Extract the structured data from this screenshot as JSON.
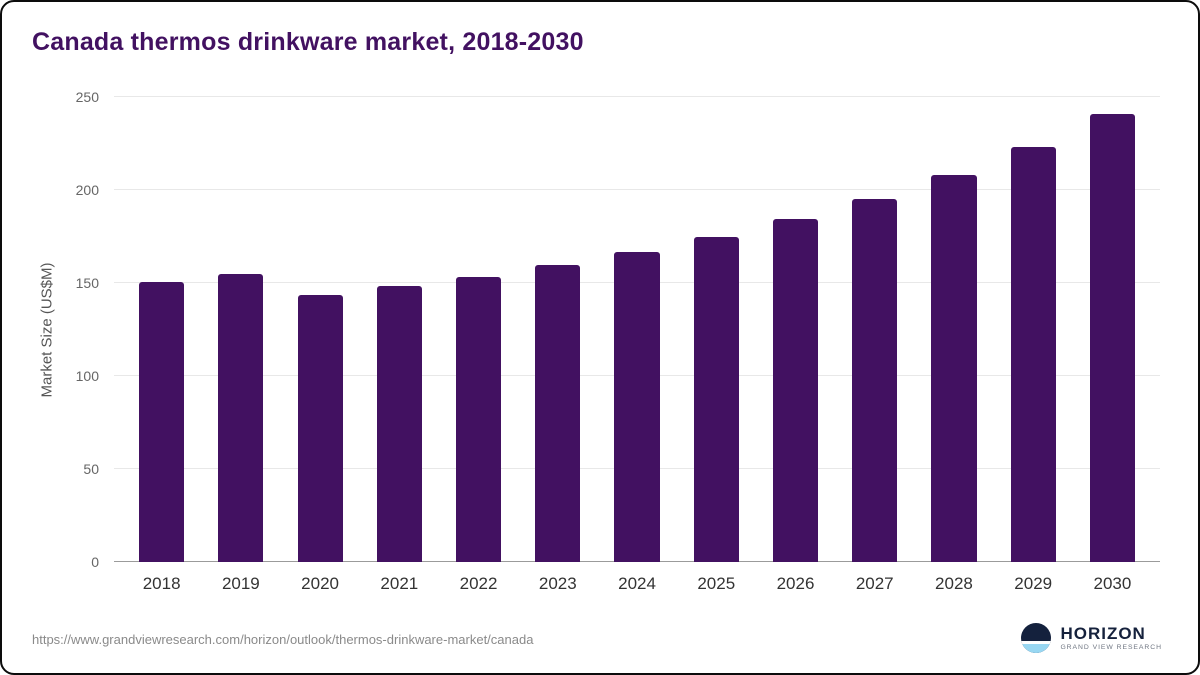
{
  "title": "Canada thermos drinkware market, 2018-2030",
  "footer": {
    "source_url": "https://www.grandviewresearch.com/horizon/outlook/thermos-drinkware-market/canada",
    "logo_title": "HORIZON",
    "logo_subtitle": "GRAND VIEW RESEARCH"
  },
  "chart_data": {
    "type": "bar",
    "title": "Canada thermos drinkware market, 2018-2030",
    "categories": [
      "2018",
      "2019",
      "2020",
      "2021",
      "2022",
      "2023",
      "2024",
      "2025",
      "2026",
      "2027",
      "2028",
      "2029",
      "2030"
    ],
    "values": [
      150.4,
      154.6,
      143.4,
      148.3,
      153.2,
      159.5,
      166.6,
      174.9,
      184.4,
      195.2,
      207.9,
      222.9,
      240.7
    ],
    "xlabel": "",
    "ylabel": "Market Size (US$M)",
    "ylim": [
      0,
      250
    ],
    "yticks": [
      0,
      50,
      100,
      150,
      200,
      250
    ],
    "grid": true,
    "legend": false,
    "bar_color": "#421161"
  }
}
